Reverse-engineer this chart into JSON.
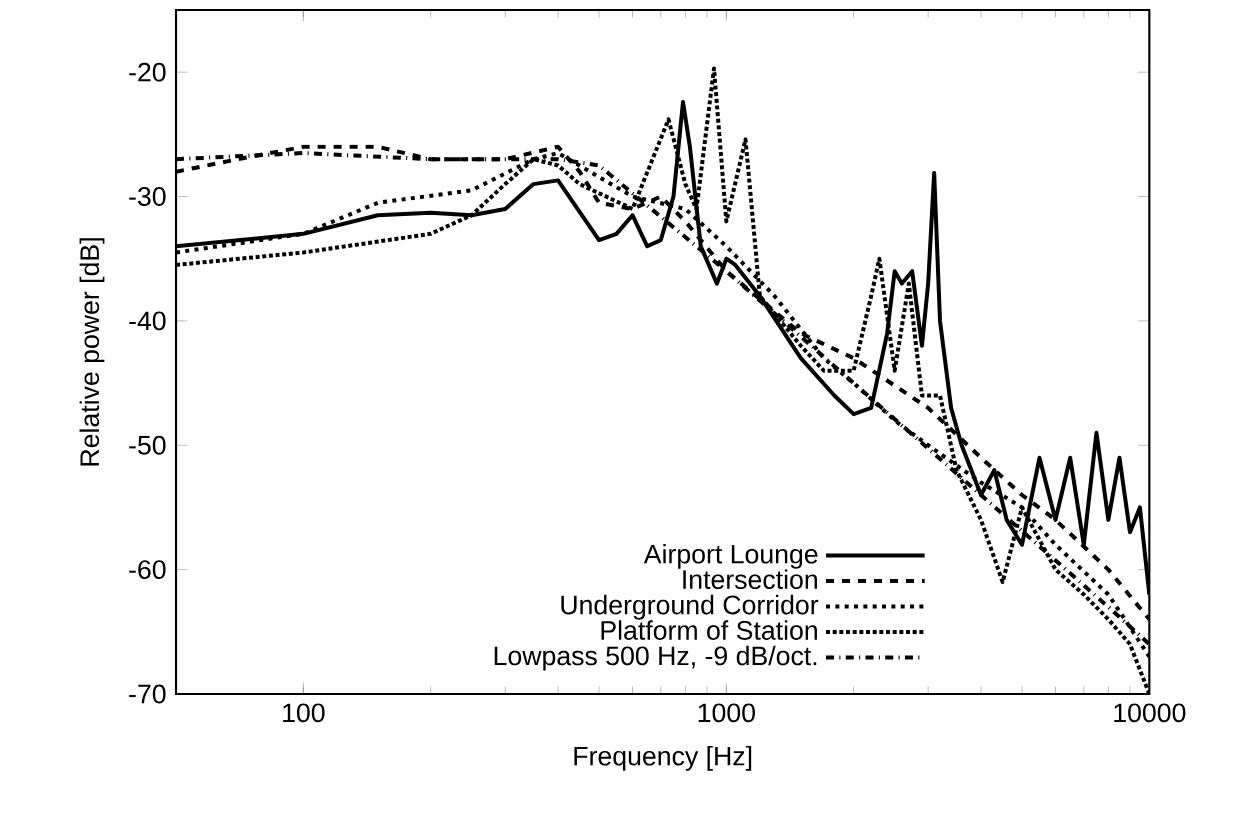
{
  "chart_data": {
    "type": "line",
    "xlabel": "Frequency [Hz]",
    "ylabel": "Relative power [dB]",
    "log": "x",
    "xlim": [
      50,
      10000
    ],
    "ylim": [
      -70,
      -15
    ],
    "xticks": [
      100,
      1000,
      10000
    ],
    "yticks": [
      -70,
      -60,
      -50,
      -40,
      -30,
      -20
    ],
    "legend": "bottom right",
    "grid": false,
    "series": [
      {
        "name": "Airport Lounge",
        "color": "#000000",
        "line_style": "solid",
        "x": [
          50,
          100,
          150,
          200,
          250,
          300,
          350,
          400,
          500,
          550,
          600,
          650,
          700,
          750,
          790,
          820,
          870,
          950,
          1000,
          1050,
          1200,
          1500,
          1800,
          2000,
          2200,
          2400,
          2500,
          2600,
          2750,
          2900,
          3000,
          3100,
          3200,
          3400,
          3600,
          4000,
          4300,
          4600,
          5000,
          5500,
          6000,
          6500,
          7000,
          7500,
          8000,
          8500,
          9000,
          9500,
          10000
        ],
        "values": [
          -34,
          -33,
          -31.5,
          -31.3,
          -31.5,
          -31,
          -29,
          -28.7,
          -33.5,
          -33,
          -31.5,
          -34,
          -33.5,
          -30,
          -22.4,
          -26,
          -34,
          -37,
          -35,
          -35.5,
          -38,
          -43,
          -46,
          -47.5,
          -47,
          -41,
          -36,
          -37,
          -36,
          -42,
          -37,
          -28.1,
          -40,
          -47,
          -50,
          -54,
          -52,
          -56,
          -58,
          -51,
          -56,
          -51,
          -58,
          -49,
          -56,
          -51,
          -57,
          -55,
          -62
        ]
      },
      {
        "name": "Intersection",
        "color": "#000000",
        "line_style": "dashed",
        "x": [
          50,
          70,
          100,
          150,
          200,
          300,
          400,
          450,
          500,
          600,
          700,
          800,
          1000,
          1500,
          2000,
          3000,
          4000,
          5000,
          6000,
          8000,
          10000
        ],
        "values": [
          -28,
          -27,
          -26,
          -26,
          -27,
          -27,
          -26,
          -28,
          -30.5,
          -31,
          -30,
          -32,
          -36,
          -41,
          -43,
          -47,
          -51,
          -54,
          -56,
          -60,
          -64
        ]
      },
      {
        "name": "Underground Corridor",
        "color": "#000000",
        "line_style": "dotted",
        "x": [
          50,
          100,
          150,
          250,
          350,
          400,
          600,
          800,
          1000,
          1300,
          1700,
          2000,
          2500,
          3000,
          4000,
          5000,
          6000,
          8000,
          10000
        ],
        "values": [
          -34.5,
          -33,
          -30.5,
          -29.5,
          -27,
          -26.5,
          -30,
          -31,
          -34,
          -38,
          -43,
          -45,
          -48,
          -50,
          -53,
          -55,
          -58,
          -62,
          -67
        ]
      },
      {
        "name": "Platform of Station",
        "color": "#000000",
        "line_style": "densely dotted",
        "x": [
          50,
          100,
          200,
          250,
          300,
          350,
          400,
          450,
          600,
          730,
          800,
          850,
          935,
          1000,
          1110,
          1200,
          1500,
          1700,
          2000,
          2200,
          2300,
          2500,
          2700,
          2900,
          3200,
          3500,
          4000,
          4500,
          5000,
          6000,
          7000,
          8000,
          9000,
          10000
        ],
        "values": [
          -35.5,
          -34.5,
          -33,
          -31.5,
          -29,
          -27,
          -27.5,
          -29,
          -31,
          -23.8,
          -29,
          -31,
          -19.7,
          -32,
          -25.4,
          -38,
          -42,
          -44,
          -44,
          -38,
          -35,
          -44,
          -37,
          -46,
          -46,
          -52,
          -56,
          -61,
          -55,
          -60,
          -62,
          -64,
          -66,
          -70
        ]
      },
      {
        "name": "Lowpass 500 Hz, -9 dB/oct.",
        "color": "#000000",
        "line_style": "dashdotted",
        "x": [
          50,
          100,
          200,
          400,
          500,
          1000,
          2000,
          4000,
          8000,
          10000
        ],
        "values": [
          -27,
          -26.5,
          -27,
          -27,
          -27.5,
          -36,
          -45,
          -54,
          -63,
          -66
        ]
      }
    ]
  }
}
